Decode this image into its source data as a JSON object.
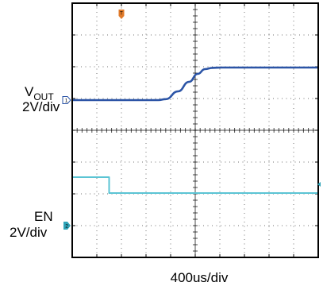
{
  "chart_data": {
    "type": "line",
    "title": "",
    "xlabel": "400us/div",
    "x_range": [
      -1600,
      2400
    ],
    "xlim_ms": [
      -1.6,
      2.4
    ],
    "divisions": {
      "x": 10,
      "y": 8
    },
    "grid": true,
    "trigger_marker": "T",
    "series": [
      {
        "name": "VOUT",
        "scale_label": "2V/div",
        "channel": "1",
        "color": "#2b54a6",
        "x": [
          -1600,
          -200,
          -80,
          120,
          300,
          440,
          560,
          680,
          820,
          2400
        ],
        "y": [
          0,
          0,
          0.06,
          0.55,
          1.15,
          1.65,
          1.95,
          2.03,
          2.05,
          2.05
        ]
      },
      {
        "name": "EN",
        "scale_label": "2V/div",
        "channel": "2",
        "color": "#5bc4d4",
        "x": [
          -1600,
          -1000,
          -1000,
          2400
        ],
        "y": [
          0.5,
          0.5,
          -0.5,
          -0.5
        ]
      }
    ]
  },
  "labels": {
    "vout_main": "V",
    "vout_sub": "OUT",
    "vout_scale": "2V/div",
    "en": "EN",
    "en_scale": "2V/div",
    "xlabel": "400us/div",
    "ch1_marker": "1",
    "ch2_marker": "2",
    "trigger": "T"
  },
  "colors": {
    "frame": "#000000",
    "grid": "#000000",
    "trigger": "#e07a2a",
    "ch2_marker": "#2fa4b8"
  }
}
